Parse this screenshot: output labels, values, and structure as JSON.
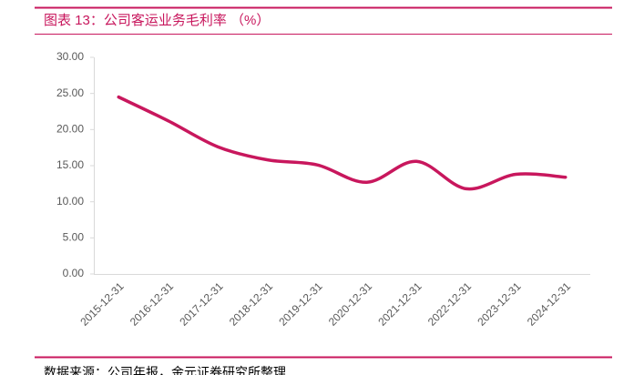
{
  "chart_data": {
    "type": "line",
    "title": "图表 13：公司客运业务毛利率 （%）",
    "source": "数据来源：公司年报，金元证券研究所整理",
    "categories": [
      "2015-12-31",
      "2016-12-31",
      "2017-12-31",
      "2018-12-31",
      "2019-12-31",
      "2020-12-31",
      "2021-12-31",
      "2022-12-31",
      "2023-12-31",
      "2024-12-31"
    ],
    "values": [
      24.5,
      21.2,
      17.6,
      15.8,
      15.1,
      12.7,
      15.6,
      11.8,
      13.8,
      13.4
    ],
    "color": "#c8175d",
    "ylim": [
      0,
      30
    ],
    "yticks": [
      {
        "value": 0,
        "label": "0.00"
      },
      {
        "value": 5,
        "label": "5.00"
      },
      {
        "value": 10,
        "label": "10.00"
      },
      {
        "value": 15,
        "label": "15.00"
      },
      {
        "value": 20,
        "label": "20.00"
      },
      {
        "value": 25,
        "label": "25.00"
      },
      {
        "value": 30,
        "label": "30.00"
      }
    ],
    "grid": false
  }
}
